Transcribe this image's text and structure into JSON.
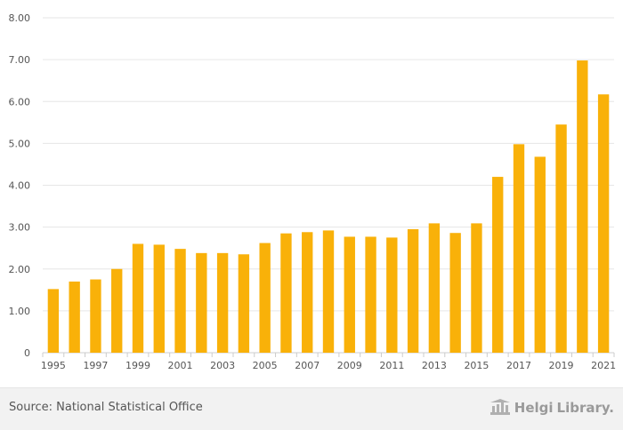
{
  "chart_data": {
    "type": "bar",
    "title": "",
    "xlabel": "",
    "ylabel": "",
    "ylim": [
      0,
      8
    ],
    "y_ticks": [
      "0",
      "1.00",
      "2.00",
      "3.00",
      "4.00",
      "5.00",
      "6.00",
      "7.00",
      "8.00"
    ],
    "y_tick_values": [
      0,
      1,
      2,
      3,
      4,
      5,
      6,
      7,
      8
    ],
    "categories": [
      "1995",
      "1996",
      "1997",
      "1998",
      "1999",
      "2000",
      "2001",
      "2002",
      "2003",
      "2004",
      "2005",
      "2006",
      "2007",
      "2008",
      "2009",
      "2010",
      "2011",
      "2012",
      "2013",
      "2014",
      "2015",
      "2016",
      "2017",
      "2018",
      "2019",
      "2020",
      "2021"
    ],
    "x_tick_labels": [
      "1995",
      "1997",
      "1999",
      "2001",
      "2003",
      "2005",
      "2007",
      "2009",
      "2011",
      "2013",
      "2015",
      "2017",
      "2019",
      "2021"
    ],
    "values": [
      1.52,
      1.7,
      1.75,
      2.0,
      2.6,
      2.58,
      2.48,
      2.38,
      2.38,
      2.35,
      2.62,
      2.85,
      2.88,
      2.92,
      2.77,
      2.77,
      2.75,
      2.95,
      3.09,
      2.86,
      3.09,
      4.2,
      4.98,
      4.68,
      5.45,
      6.98,
      6.17
    ],
    "bar_color": "#F9B109",
    "grid": true
  },
  "footer": {
    "source": "Source: National Statistical Office",
    "brand_name": "Helgi",
    "brand_suffix": "Library."
  },
  "colors": {
    "grid": "#e6e6e6",
    "axis": "#cccccc",
    "text": "#555555"
  }
}
